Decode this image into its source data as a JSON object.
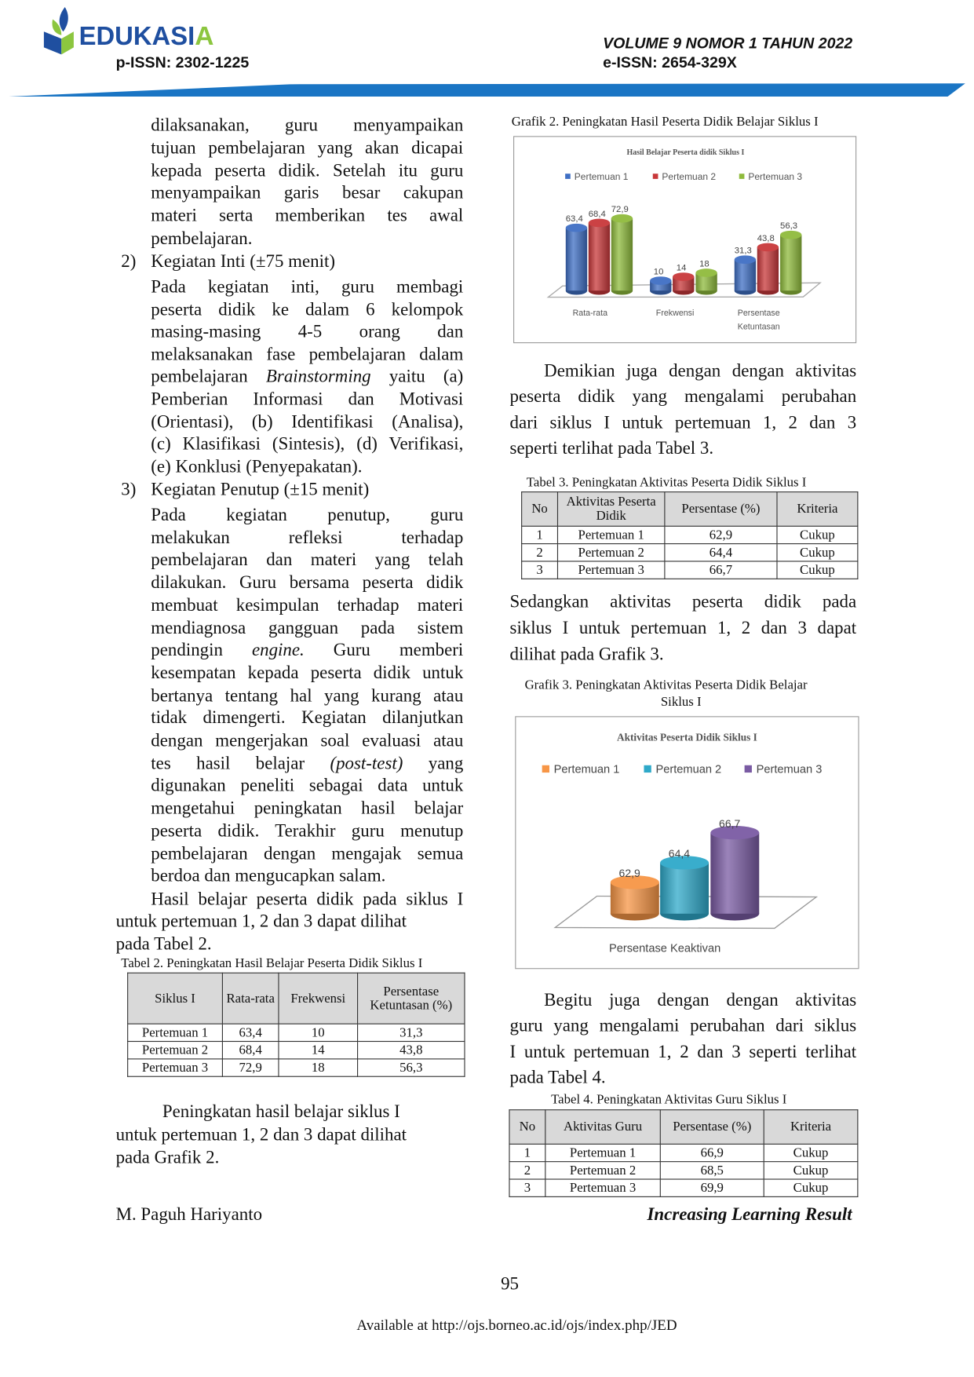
{
  "header": {
    "logo_text": "EDUKASIA",
    "p_issn": "p-ISSN: 2302-1225",
    "volume": "VOLUME 9 NOMOR 1 TAHUN 2022",
    "e_issn": "e-ISSN: 2654-329X",
    "colors": {
      "brand_blue": "#1f4fa0",
      "brand_green": "#8cc63f",
      "rule_blue": "#1a75c4"
    }
  },
  "left": {
    "p1": [
      "dilaksanakan, guru menyampaikan",
      "tujuan pembelajaran yang akan dicapai",
      "kepada peserta didik. Setelah itu guru",
      "menyampaikan garis besar cakupan",
      "materi serta memberikan tes awal",
      "pembelajaran."
    ],
    "item2_num": "2)",
    "item2_title": "Kegiatan Inti (±75 menit)",
    "p2": [
      "Pada kegiatan inti, guru membagi",
      "peserta didik ke dalam 6 kelompok",
      "masing-masing 4-5 orang dan",
      "melaksanakan fase pembelajaran dalam",
      [
        "pembelajaran ",
        "Brainstorming",
        " yaitu (a)"
      ],
      "Pemberian Informasi dan Motivasi",
      "(Orientasi), (b) Identifikasi (Analisa),",
      "(c) Klasifikasi (Sintesis), (d) Verifikasi,",
      "(e) Konklusi (Penyepakatan)."
    ],
    "item3_num": "3)",
    "item3_title": "Kegiatan Penutup (±15 menit)",
    "p3": [
      "Pada kegiatan penutup, guru",
      "melakukan refleksi terhadap",
      "pembelajaran dan materi yang telah",
      "dilakukan. Guru bersama peserta didik",
      "membuat kesimpulan terhadap materi",
      "mendiagnosa gangguan pada sistem",
      [
        "pendingin ",
        "engine.",
        " Guru memberi"
      ],
      "kesempatan kepada peserta didik untuk",
      "bertanya tentang hal yang kurang atau",
      "tidak dimengerti. Kegiatan dilanjutkan",
      "dengan mengerjakan soal evaluasi atau",
      [
        "tes hasil belajar ",
        "(post-test)",
        " yang"
      ],
      "digunakan peneliti sebagai data untuk",
      "mengetahui peningkatan hasil belajar",
      "peserta didik. Terakhir guru menutup",
      "pembelajaran dengan mengajak semua",
      "berdoa dan mengucapkan salam."
    ],
    "p4": [
      "Hasil belajar peserta didik pada siklus I",
      "untuk pertemuan 1, 2 dan 3 dapat dilihat",
      "pada Tabel 2."
    ],
    "p5": [
      "Peningkatan hasil belajar siklus I",
      "untuk pertemuan 1, 2 dan 3 dapat dilihat",
      "pada Grafik 2."
    ],
    "author": "M. Paguh Hariyanto"
  },
  "table2": {
    "caption": "Tabel 2. Peningkatan Hasil Belajar Peserta Didik Siklus I",
    "headers": [
      "Siklus I",
      "Rata-rata",
      "Frekwensi",
      "Persentase Ketuntasan (%)"
    ],
    "rows": [
      [
        "Pertemuan 1",
        "63,4",
        "10",
        "31,3"
      ],
      [
        "Pertemuan 2",
        "68,4",
        "14",
        "43,8"
      ],
      [
        "Pertemuan 3",
        "72,9",
        "18",
        "56,3"
      ]
    ]
  },
  "right": {
    "p1": [
      "Demikian juga dengan dengan aktivitas",
      "peserta didik yang mengalami perubahan",
      "dari siklus I untuk pertemuan 1, 2 dan 3",
      "seperti terlihat pada Tabel 3."
    ],
    "p2": [
      "Sedangkan aktivitas peserta didik pada",
      "siklus I untuk pertemuan 1, 2 dan 3 dapat",
      "dilihat pada Grafik 3."
    ],
    "p3": [
      "Begitu juga dengan dengan aktivitas",
      "guru yang mengalami perubahan dari siklus",
      "I untuk pertemuan 1, 2 dan 3 seperti terlihat",
      "pada Tabel 4."
    ],
    "running_title": "Increasing Learning Result"
  },
  "table3": {
    "caption": "Tabel 3. Peningkatan Aktivitas Peserta Didik Siklus I",
    "headers": [
      "No",
      "Aktivitas Peserta Didik",
      "Persentase (%)",
      "Kriteria"
    ],
    "rows": [
      [
        "1",
        "Pertemuan 1",
        "62,9",
        "Cukup"
      ],
      [
        "2",
        "Pertemuan 2",
        "64,4",
        "Cukup"
      ],
      [
        "3",
        "Pertemuan 3",
        "66,7",
        "Cukup"
      ]
    ]
  },
  "table4": {
    "caption": "Tabel 4. Peningkatan Aktivitas Guru Siklus I",
    "headers": [
      "No",
      "Aktivitas Guru",
      "Persentase (%)",
      "Kriteria"
    ],
    "rows": [
      [
        "1",
        "Pertemuan 1",
        "66,9",
        "Cukup"
      ],
      [
        "2",
        "Pertemuan 2",
        "68,5",
        "Cukup"
      ],
      [
        "3",
        "Pertemuan 3",
        "69,9",
        "Cukup"
      ]
    ]
  },
  "grafik2_caption": "Grafik 2. Peningkatan Hasil Peserta Didik Belajar Siklus I",
  "grafik3_caption": [
    "Grafik 3. Peningkatan Aktivitas Peserta Didik Belajar",
    "Siklus I"
  ],
  "chart_data": [
    {
      "type": "bar",
      "style": "3d-cylinder",
      "title": "Hasil Belajar Peserta didik Siklus I",
      "categories": [
        "Rata-rata",
        "Frekwensi",
        "Persentase Ketuntasan"
      ],
      "series": [
        {
          "name": "Pertemuan 1",
          "values": [
            63.4,
            10,
            31.3
          ],
          "labels": [
            "63,4",
            "10",
            "31,3"
          ],
          "color": "#3f6fc4"
        },
        {
          "name": "Pertemuan 2",
          "values": [
            68.4,
            14,
            43.8
          ],
          "labels": [
            "68,4",
            "14",
            "43,8"
          ],
          "color": "#c8383a"
        },
        {
          "name": "Pertemuan 3",
          "values": [
            72.9,
            18,
            56.3
          ],
          "labels": [
            "72,9",
            "18",
            "56,3"
          ],
          "color": "#8fbb3c"
        }
      ],
      "ylim": [
        0,
        80
      ],
      "legend": "top",
      "grid": false
    },
    {
      "type": "bar",
      "style": "3d-cylinder",
      "title": "Aktivitas Peserta Didik Siklus I",
      "categories": [
        "Persentase Keaktivan"
      ],
      "series": [
        {
          "name": "Pertemuan 1",
          "values": [
            62.9
          ],
          "labels": [
            "62,9"
          ],
          "color": "#f79646"
        },
        {
          "name": "Pertemuan 2",
          "values": [
            64.4
          ],
          "labels": [
            "64,4"
          ],
          "color": "#2fa9c9"
        },
        {
          "name": "Pertemuan 3",
          "values": [
            66.7
          ],
          "labels": [
            "66,7"
          ],
          "color": "#7a5ba3"
        }
      ],
      "ylim": [
        60.5,
        68
      ],
      "legend": "top",
      "grid": false
    }
  ],
  "footer": {
    "page_number": "95",
    "available_at": "Available at http://ojs.borneo.ac.id/ojs/index.php/JED"
  }
}
